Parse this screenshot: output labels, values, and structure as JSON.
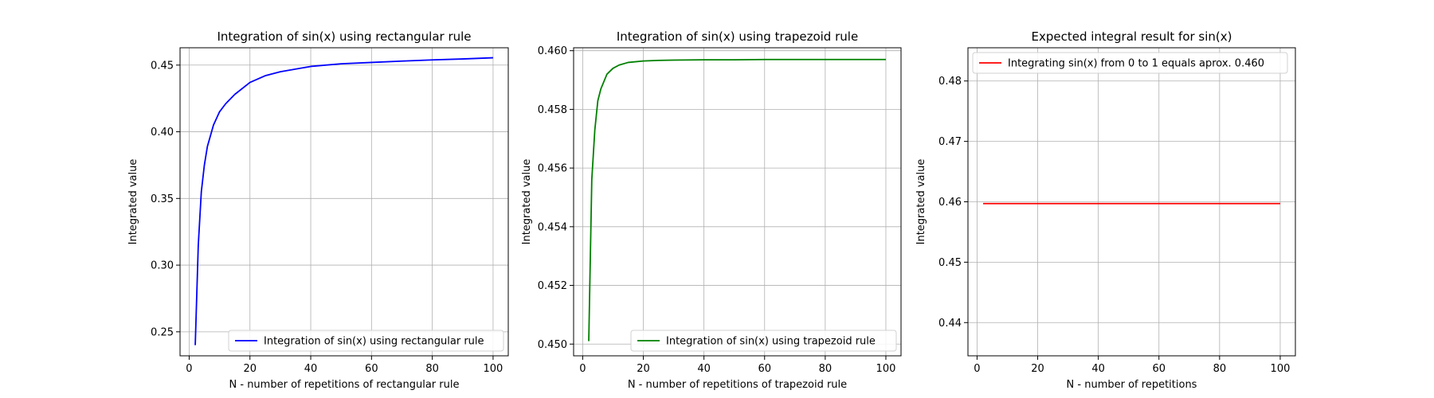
{
  "chart_data": [
    {
      "type": "line",
      "title": "Integration of sin(x) using rectangular rule",
      "xlabel": "N - number of repetitions of rectangular rule",
      "ylabel": "Integrated value",
      "xlim": [
        -3,
        105
      ],
      "ylim": [
        0.232,
        0.463
      ],
      "xticks": [
        "0",
        "20",
        "40",
        "60",
        "80",
        "100"
      ],
      "xtick_values": [
        0,
        20,
        40,
        60,
        80,
        100
      ],
      "yticks": [
        "0.25",
        "0.30",
        "0.35",
        "0.40",
        "0.45"
      ],
      "ytick_values": [
        0.25,
        0.3,
        0.35,
        0.4,
        0.45
      ],
      "grid": true,
      "legend_position": "lower right",
      "series": [
        {
          "name": "Integration of sin(x) using rectangular rule",
          "color": "#0000ff",
          "x": [
            2,
            3,
            4,
            5,
            6,
            8,
            10,
            12,
            15,
            20,
            25,
            30,
            40,
            50,
            60,
            70,
            80,
            90,
            100
          ],
          "y": [
            0.24,
            0.315,
            0.355,
            0.375,
            0.389,
            0.405,
            0.415,
            0.421,
            0.428,
            0.437,
            0.442,
            0.445,
            0.449,
            0.451,
            0.452,
            0.453,
            0.4539,
            0.4546,
            0.4555
          ]
        }
      ]
    },
    {
      "type": "line",
      "title": "Integration of sin(x) using trapezoid rule",
      "xlabel": "N - number of repetitions of trapezoid rule",
      "ylabel": "Integrated value",
      "xlim": [
        -3,
        105
      ],
      "ylim": [
        0.4496,
        0.4601
      ],
      "xticks": [
        "0",
        "20",
        "40",
        "60",
        "80",
        "100"
      ],
      "xtick_values": [
        0,
        20,
        40,
        60,
        80,
        100
      ],
      "yticks": [
        "0.450",
        "0.452",
        "0.454",
        "0.456",
        "0.458",
        "0.460"
      ],
      "ytick_values": [
        0.45,
        0.452,
        0.454,
        0.456,
        0.458,
        0.46
      ],
      "grid": true,
      "legend_position": "lower right",
      "series": [
        {
          "name": "Integration of sin(x) using trapezoid rule",
          "color": "#008000",
          "x": [
            2,
            3,
            4,
            5,
            6,
            8,
            10,
            12,
            15,
            20,
            25,
            30,
            40,
            50,
            60,
            70,
            80,
            90,
            100
          ],
          "y": [
            0.4501,
            0.4556,
            0.4573,
            0.4583,
            0.4587,
            0.4592,
            0.4594,
            0.45951,
            0.4596,
            0.45965,
            0.45967,
            0.45968,
            0.45969,
            0.45969,
            0.4597,
            0.4597,
            0.4597,
            0.4597,
            0.4597
          ]
        }
      ]
    },
    {
      "type": "line",
      "title": "Expected integral result for sin(x)",
      "xlabel": "N - number of repetitions",
      "ylabel": "Integrated value",
      "xlim": [
        -3,
        105
      ],
      "ylim": [
        0.4345,
        0.4855
      ],
      "xticks": [
        "0",
        "20",
        "40",
        "60",
        "80",
        "100"
      ],
      "xtick_values": [
        0,
        20,
        40,
        60,
        80,
        100
      ],
      "yticks": [
        "0.44",
        "0.45",
        "0.46",
        "0.47",
        "0.48"
      ],
      "ytick_values": [
        0.44,
        0.45,
        0.46,
        0.47,
        0.48
      ],
      "grid": true,
      "legend_position": "upper left",
      "series": [
        {
          "name": "Integrating sin(x) from 0 to 1 equals aprox. 0.460",
          "color": "#ff0000",
          "x": [
            2,
            100
          ],
          "y": [
            0.4597,
            0.4597
          ]
        }
      ]
    }
  ]
}
